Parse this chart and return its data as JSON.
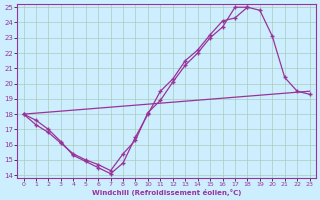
{
  "xlabel": "Windchill (Refroidissement éolien,°C)",
  "bg_color": "#cceeff",
  "grid_color": "#aaccbb",
  "line_color": "#993399",
  "xlim": [
    -0.5,
    23.5
  ],
  "ylim": [
    13.8,
    25.2
  ],
  "yticks": [
    14,
    15,
    16,
    17,
    18,
    19,
    20,
    21,
    22,
    23,
    24,
    25
  ],
  "xticks": [
    0,
    1,
    2,
    3,
    4,
    5,
    6,
    7,
    8,
    9,
    10,
    11,
    12,
    13,
    14,
    15,
    16,
    17,
    18,
    19,
    20,
    21,
    22,
    23
  ],
  "line1_x": [
    0,
    1,
    2,
    3,
    4,
    5,
    6,
    7,
    8,
    9,
    10,
    11,
    12,
    13,
    14,
    15,
    16,
    17,
    18,
    19,
    20,
    21,
    22,
    23
  ],
  "line1_y": [
    18,
    17.6,
    17.0,
    16.2,
    15.3,
    14.9,
    14.5,
    14.1,
    14.8,
    16.5,
    18.0,
    19.5,
    20.3,
    21.5,
    22.2,
    23.2,
    24.1,
    24.3,
    25.0,
    24.8,
    23.1,
    20.4,
    19.5,
    19.3
  ],
  "line2_x": [
    0,
    1,
    2,
    3,
    4,
    5,
    6,
    7,
    8,
    9,
    10,
    11,
    12,
    13,
    14,
    15,
    16,
    17,
    18,
    19,
    20,
    21,
    22,
    23
  ],
  "line2_y": [
    18,
    17.3,
    16.8,
    16.1,
    15.4,
    15.0,
    14.7,
    14.3,
    15.4,
    16.3,
    18.1,
    18.9,
    20.1,
    21.2,
    22.0,
    23.0,
    23.7,
    25.0,
    25.0,
    null,
    null,
    null,
    null,
    null
  ],
  "line3_x": [
    0,
    23
  ],
  "line3_y": [
    18,
    19.5
  ]
}
